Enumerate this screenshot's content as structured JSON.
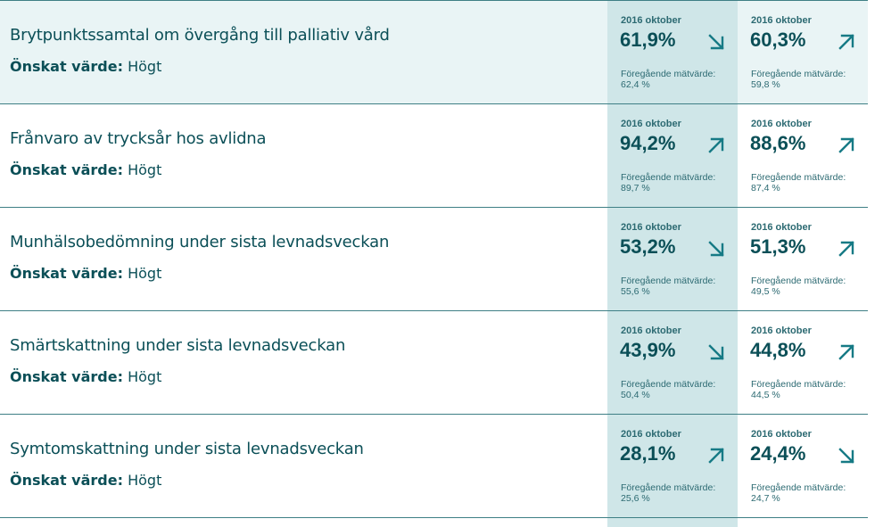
{
  "desired_label": "Önskat värde:",
  "rows": [
    {
      "title": "Brytpunktssamtal om övergång till palliativ vård",
      "desired": "Högt",
      "a": {
        "period": "2016 oktober",
        "value": "61,9%",
        "dir": "down",
        "prev_label": "Föregående mätvärde:",
        "prev": "62,4 %"
      },
      "b": {
        "period": "2016 oktober",
        "value": "60,3%",
        "dir": "up",
        "prev_label": "Föregående mätvärde:",
        "prev": "59,8 %"
      }
    },
    {
      "title": "Frånvaro av trycksår hos avlidna",
      "desired": "Högt",
      "a": {
        "period": "2016 oktober",
        "value": "94,2%",
        "dir": "up",
        "prev_label": "Föregående mätvärde:",
        "prev": "89,7 %"
      },
      "b": {
        "period": "2016 oktober",
        "value": "88,6%",
        "dir": "up",
        "prev_label": "Föregående mätvärde:",
        "prev": "87,4 %"
      }
    },
    {
      "title": "Munhälsobedömning under sista levnadsveckan",
      "desired": "Högt",
      "a": {
        "period": "2016 oktober",
        "value": "53,2%",
        "dir": "down",
        "prev_label": "Föregående mätvärde:",
        "prev": "55,6 %"
      },
      "b": {
        "period": "2016 oktober",
        "value": "51,3%",
        "dir": "up",
        "prev_label": "Föregående mätvärde:",
        "prev": "49,5 %"
      }
    },
    {
      "title": "Smärtskattning under sista levnadsveckan",
      "desired": "Högt",
      "a": {
        "period": "2016 oktober",
        "value": "43,9%",
        "dir": "down",
        "prev_label": "Föregående mätvärde:",
        "prev": "50,4 %"
      },
      "b": {
        "period": "2016 oktober",
        "value": "44,8%",
        "dir": "up",
        "prev_label": "Föregående mätvärde:",
        "prev": "44,5 %"
      }
    },
    {
      "title": "Symtomskattning under sista levnadsveckan",
      "desired": "Högt",
      "a": {
        "period": "2016 oktober",
        "value": "28,1%",
        "dir": "up",
        "prev_label": "Föregående mätvärde:",
        "prev": "25,6 %"
      },
      "b": {
        "period": "2016 oktober",
        "value": "24,4%",
        "dir": "down",
        "prev_label": "Föregående mätvärde:",
        "prev": "24,7 %"
      }
    }
  ],
  "colors": {
    "text": "#0b4f57",
    "accent": "#167a85",
    "highlight": "#cfe6e8",
    "row_highlight": "#e9f4f5"
  }
}
